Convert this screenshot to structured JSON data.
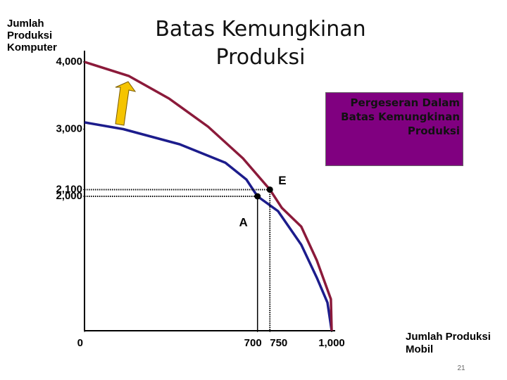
{
  "chart_data": {
    "type": "line",
    "title": "Batas Kemungkinan Produksi",
    "y_label": "Jumlah Produksi Komputer",
    "x_label": "Jumlah Produksi Mobil",
    "annotation": "Pergeseran Dalam Batas Kemungkinan Produksi",
    "xlim": [
      0,
      1000
    ],
    "ylim": [
      0,
      4000
    ],
    "xticks": [
      0,
      700,
      750,
      {
        "value": 1000,
        "label": "1,000"
      }
    ],
    "yticks": [
      {
        "value": 2000,
        "label": "2,000"
      },
      {
        "value": 2100,
        "label": "2,100"
      },
      {
        "value": 3000,
        "label": "3,000"
      },
      {
        "value": 4000,
        "label": "4,000"
      }
    ],
    "series": [
      {
        "color": "#1c1c8c",
        "x": [
          0,
          157,
          385,
          570,
          655,
          700,
          783,
          877,
          940,
          983,
          1000
        ],
        "values": [
          3100,
          3000,
          2775,
          2500,
          2250,
          2000,
          1780,
          1280,
          790,
          420,
          0
        ]
      },
      {
        "color": "#8b1a3a",
        "x": [
          0,
          180,
          342,
          500,
          641,
          750,
          798,
          877,
          940,
          997,
          1000
        ],
        "values": [
          4000,
          3790,
          3455,
          3037,
          2565,
          2100,
          1830,
          1550,
          1047,
          470,
          0
        ]
      }
    ],
    "points": [
      {
        "label": "A",
        "x": 700,
        "y": 2000
      },
      {
        "label": "E",
        "x": 750,
        "y": 2100
      }
    ]
  },
  "slide_number": "21"
}
